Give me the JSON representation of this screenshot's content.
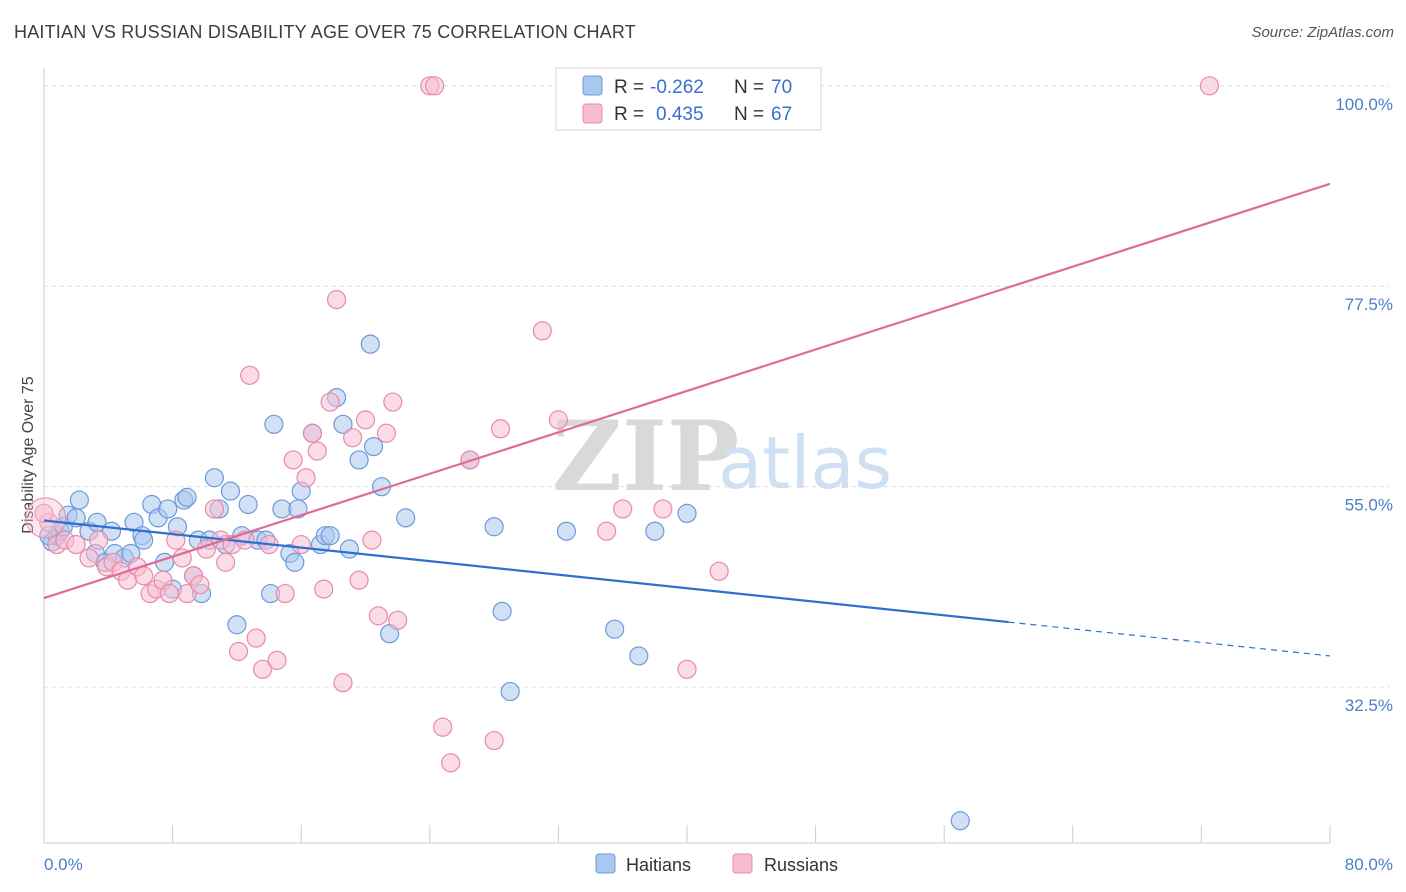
{
  "header": {
    "title": "HAITIAN VS RUSSIAN DISABILITY AGE OVER 75 CORRELATION CHART",
    "source": "Source: ZipAtlas.com"
  },
  "watermark": {
    "zip": "ZIP",
    "atlas": "atlas"
  },
  "legend_box": {
    "rows": [
      {
        "r_label": "R =",
        "r_value": "-0.262",
        "n_label": "N =",
        "n_value": "70"
      },
      {
        "r_label": "R =",
        "r_value": "0.435",
        "n_label": "N =",
        "n_value": "67"
      }
    ]
  },
  "bottom_legend": {
    "haitians": "Haitians",
    "russians": "Russians"
  },
  "colors": {
    "haitian_fill": "#a9c8ef",
    "haitian_stroke": "#6d9ad8",
    "haitian_line": "#2f6fcf",
    "russian_fill": "#f7bdd0",
    "russian_stroke": "#e88aaa",
    "russian_line": "#e06a94",
    "grid": "#dddddd",
    "tick_text": "#4a7fc9"
  },
  "chart_data": {
    "type": "scatter",
    "title": "HAITIAN VS RUSSIAN DISABILITY AGE OVER 75 CORRELATION CHART",
    "xlabel": "",
    "ylabel": "Disability Age Over 75",
    "xlim": [
      0,
      80
    ],
    "ylim": [
      15,
      102
    ],
    "x_tick_labels": [
      "0.0%",
      "80.0%"
    ],
    "y_ticks": [
      32.5,
      55.0,
      77.5,
      100.0
    ],
    "y_tick_labels": [
      "32.5%",
      "55.0%",
      "77.5%",
      "100.0%"
    ],
    "grid": true,
    "legend_position": "top-center",
    "series": [
      {
        "name": "Haitians",
        "r": -0.262,
        "n": 70,
        "trend": {
          "x0": 0,
          "y0": 51.2,
          "x1": 80,
          "y1": 36.0,
          "solid_until": 60
        },
        "points": [
          [
            0.5,
            48.8
          ],
          [
            0.8,
            49.5
          ],
          [
            1.0,
            50.0
          ],
          [
            1.2,
            50.5
          ],
          [
            1.5,
            51.8
          ],
          [
            2.0,
            51.5
          ],
          [
            2.2,
            53.5
          ],
          [
            2.8,
            50.0
          ],
          [
            3.2,
            47.5
          ],
          [
            3.3,
            51.0
          ],
          [
            3.8,
            46.5
          ],
          [
            4.2,
            50.0
          ],
          [
            4.4,
            47.5
          ],
          [
            5.0,
            47.0
          ],
          [
            5.4,
            47.5
          ],
          [
            5.6,
            51.0
          ],
          [
            6.1,
            49.5
          ],
          [
            6.2,
            49.0
          ],
          [
            6.7,
            53.0
          ],
          [
            7.1,
            51.5
          ],
          [
            7.5,
            46.5
          ],
          [
            7.7,
            52.5
          ],
          [
            8.0,
            43.5
          ],
          [
            8.3,
            50.5
          ],
          [
            8.7,
            53.5
          ],
          [
            8.9,
            53.8
          ],
          [
            9.3,
            45.0
          ],
          [
            9.6,
            49.0
          ],
          [
            9.8,
            43.0
          ],
          [
            10.3,
            49.0
          ],
          [
            10.6,
            56.0
          ],
          [
            10.9,
            52.5
          ],
          [
            11.3,
            48.5
          ],
          [
            11.6,
            54.5
          ],
          [
            12.0,
            39.5
          ],
          [
            12.3,
            49.5
          ],
          [
            12.7,
            53.0
          ],
          [
            13.3,
            49.0
          ],
          [
            13.8,
            49.0
          ],
          [
            14.1,
            43.0
          ],
          [
            14.3,
            62.0
          ],
          [
            14.8,
            52.5
          ],
          [
            15.3,
            47.5
          ],
          [
            15.8,
            52.5
          ],
          [
            15.6,
            46.5
          ],
          [
            16.0,
            54.5
          ],
          [
            16.7,
            61.0
          ],
          [
            17.2,
            48.5
          ],
          [
            17.5,
            49.5
          ],
          [
            17.8,
            49.5
          ],
          [
            18.2,
            65.0
          ],
          [
            18.6,
            62.0
          ],
          [
            19.0,
            48.0
          ],
          [
            19.6,
            58.0
          ],
          [
            20.3,
            71.0
          ],
          [
            20.5,
            59.5
          ],
          [
            21.0,
            55.0
          ],
          [
            21.5,
            38.5
          ],
          [
            22.5,
            51.5
          ],
          [
            26.5,
            58.0
          ],
          [
            28.0,
            50.5
          ],
          [
            28.5,
            41.0
          ],
          [
            29.0,
            32.0
          ],
          [
            32.5,
            50.0
          ],
          [
            35.5,
            39.0
          ],
          [
            37.0,
            36.0
          ],
          [
            38.0,
            50.0
          ],
          [
            40.0,
            52.0
          ],
          [
            57.0,
            17.5
          ],
          [
            0.3,
            49.5
          ]
        ]
      },
      {
        "name": "Russians",
        "r": 0.435,
        "n": 67,
        "trend": {
          "x0": 0,
          "y0": 42.5,
          "x1": 80,
          "y1": 89.0
        },
        "points": [
          [
            0.3,
            51.0
          ],
          [
            0.8,
            48.5
          ],
          [
            1.3,
            49.0
          ],
          [
            2.0,
            48.5
          ],
          [
            2.8,
            47.0
          ],
          [
            3.4,
            49.0
          ],
          [
            3.9,
            46.0
          ],
          [
            4.3,
            46.5
          ],
          [
            4.8,
            45.5
          ],
          [
            5.2,
            44.5
          ],
          [
            5.8,
            46.0
          ],
          [
            6.2,
            45.0
          ],
          [
            6.6,
            43.0
          ],
          [
            7.0,
            43.5
          ],
          [
            7.4,
            44.5
          ],
          [
            7.8,
            43.0
          ],
          [
            8.2,
            49.0
          ],
          [
            8.6,
            47.0
          ],
          [
            8.9,
            43.0
          ],
          [
            9.3,
            45.0
          ],
          [
            9.7,
            44.0
          ],
          [
            10.1,
            48.0
          ],
          [
            10.6,
            52.5
          ],
          [
            11.0,
            49.0
          ],
          [
            11.3,
            46.5
          ],
          [
            11.7,
            48.5
          ],
          [
            12.1,
            36.5
          ],
          [
            12.5,
            49.0
          ],
          [
            12.8,
            67.5
          ],
          [
            13.2,
            38.0
          ],
          [
            13.6,
            34.5
          ],
          [
            14.0,
            48.5
          ],
          [
            14.5,
            35.5
          ],
          [
            15.0,
            43.0
          ],
          [
            15.5,
            58.0
          ],
          [
            16.0,
            48.5
          ],
          [
            16.3,
            56.0
          ],
          [
            16.7,
            61.0
          ],
          [
            17.0,
            59.0
          ],
          [
            17.4,
            43.5
          ],
          [
            17.8,
            64.5
          ],
          [
            18.2,
            76.0
          ],
          [
            18.6,
            33.0
          ],
          [
            19.2,
            60.5
          ],
          [
            19.6,
            44.5
          ],
          [
            20.0,
            62.5
          ],
          [
            20.4,
            49.0
          ],
          [
            20.8,
            40.5
          ],
          [
            21.3,
            61.0
          ],
          [
            21.7,
            64.5
          ],
          [
            22.0,
            40.0
          ],
          [
            24.0,
            100.0
          ],
          [
            24.3,
            100.0
          ],
          [
            24.8,
            28.0
          ],
          [
            25.3,
            24.0
          ],
          [
            26.5,
            58.0
          ],
          [
            28.0,
            26.5
          ],
          [
            28.4,
            61.5
          ],
          [
            31.0,
            72.5
          ],
          [
            32.0,
            62.5
          ],
          [
            35.0,
            50.0
          ],
          [
            36.0,
            52.5
          ],
          [
            38.5,
            52.5
          ],
          [
            40.0,
            34.5
          ],
          [
            42.0,
            45.5
          ],
          [
            72.5,
            100.0
          ],
          [
            0.0,
            52.0
          ]
        ]
      }
    ]
  }
}
